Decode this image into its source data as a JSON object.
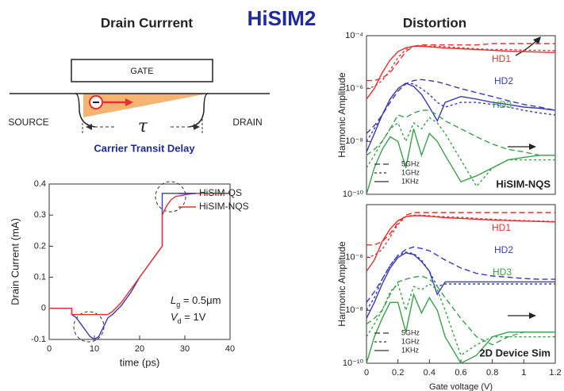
{
  "header": {
    "title": "HiSIM2",
    "left_title": "Drain Currrent",
    "right_title": "Distortion"
  },
  "diagram": {
    "gate": "GATE",
    "source": "SOURCE",
    "drain": "DRAIN",
    "tau": "τ",
    "caption": "Carrier Transit Delay"
  },
  "chart_data": [
    {
      "type": "line",
      "xlabel": "time (ps)",
      "ylabel": "Drain Current (mA)",
      "xlim": [
        0,
        40
      ],
      "xticks": [
        0,
        10,
        20,
        30,
        40
      ],
      "ylim": [
        -0.1,
        0.4
      ],
      "yticks": [
        -0.1,
        0,
        0.1,
        0.2,
        0.3,
        0.4
      ],
      "legend": "upper right",
      "annotations": [
        [
          "L",
          "g",
          " = 0.5μm"
        ],
        [
          "V",
          "d",
          " = 1V"
        ]
      ],
      "series": [
        {
          "name": "HiSIM-QS",
          "color": "#3b3bb5",
          "x": [
            0,
            5,
            5,
            6,
            7,
            8,
            9,
            10,
            11,
            12,
            13,
            14,
            16,
            18,
            20,
            22,
            24,
            25,
            25,
            27,
            30,
            35,
            40
          ],
          "values": [
            0,
            0,
            -0.02,
            -0.03,
            -0.05,
            -0.07,
            -0.09,
            -0.1,
            -0.09,
            -0.06,
            -0.03,
            -0.02,
            0.01,
            0.05,
            0.1,
            0.14,
            0.18,
            0.2,
            0.37,
            0.37,
            0.37,
            0.37,
            0.37
          ]
        },
        {
          "name": "HiSIM-NQS",
          "color": "#e8312f",
          "x": [
            0,
            5,
            5,
            10,
            13,
            14,
            16,
            18,
            20,
            22,
            24,
            25,
            25,
            26,
            27,
            28,
            30,
            32,
            35,
            40
          ],
          "values": [
            0,
            0,
            -0.02,
            -0.02,
            -0.02,
            -0.01,
            0.02,
            0.06,
            0.1,
            0.14,
            0.18,
            0.2,
            0.3,
            0.33,
            0.35,
            0.36,
            0.365,
            0.37,
            0.37,
            0.37
          ]
        }
      ]
    },
    {
      "type": "line",
      "log_y": true,
      "label": "HiSIM-NQS",
      "ylabel": "Harmonic Amplitude",
      "xlim": [
        0,
        1.2
      ],
      "ylim": [
        1e-10,
        0.0001
      ],
      "yticks": [
        {
          "value": 1e-10,
          "label": "10⁻¹⁰"
        },
        {
          "value": 1e-08,
          "label": "10⁻⁸"
        },
        {
          "value": 1e-06,
          "label": "10⁻⁶"
        },
        {
          "value": 0.0001,
          "label": "10⁻⁴"
        }
      ],
      "legend": [
        "5GHz",
        "1GHz",
        "1KHz"
      ],
      "x": [
        0,
        0.05,
        0.1,
        0.15,
        0.2,
        0.25,
        0.3,
        0.35,
        0.4,
        0.45,
        0.5,
        0.6,
        0.7,
        0.8,
        0.9,
        1.0,
        1.1,
        1.2
      ],
      "series": [
        {
          "name": "HD1",
          "color": "#e8312f",
          "lines": [
            [
              2e-06,
              2e-06,
              2.5e-06,
              4e-06,
              1e-05,
              2.5e-05,
              4e-05,
              4.5e-05,
              4.5e-05,
              4.5e-05,
              4.5e-05,
              4.5e-05,
              4.5e-05,
              5e-05,
              5e-05,
              5e-05,
              5e-05,
              5e-05
            ],
            [
              1e-06,
              1.2e-06,
              2e-06,
              5e-06,
              1.5e-05,
              3e-05,
              4e-05,
              4.2e-05,
              4e-05,
              4e-05,
              3.8e-05,
              3.5e-05,
              3.2e-05,
              3e-05,
              3e-05,
              2.8e-05,
              2.8e-05,
              2.7e-05
            ],
            [
              4e-07,
              1e-06,
              4e-06,
              1.2e-05,
              2.5e-05,
              3.5e-05,
              4e-05,
              4e-05,
              3.8e-05,
              3.6e-05,
              3.4e-05,
              3.2e-05,
              3e-05,
              2.8e-05,
              2.6e-05,
              2.5e-05,
              2.4e-05,
              2.3e-05
            ]
          ]
        },
        {
          "name": "HD2",
          "color": "#3b3bb5",
          "lines": [
            [
              2e-08,
              4e-08,
              1e-07,
              3e-07,
              8e-07,
              1.5e-06,
              2e-06,
              2.2e-06,
              2e-06,
              1.8e-06,
              1.5e-06,
              1e-06,
              7e-07,
              5e-07,
              3.5e-07,
              2.5e-07,
              2e-07,
              1.5e-07
            ],
            [
              1e-08,
              3e-08,
              1e-07,
              4e-07,
              1e-06,
              1.6e-06,
              1.5e-06,
              1e-06,
              6e-07,
              3e-07,
              2e-07,
              3e-07,
              3e-07,
              2.5e-07,
              2e-07,
              1.5e-07,
              1.2e-07,
              1e-07
            ],
            [
              4e-09,
              2e-08,
              1e-07,
              4e-07,
              1e-06,
              1.6e-06,
              1.2e-06,
              6e-07,
              2e-07,
              6e-08,
              3e-07,
              5e-07,
              4e-07,
              3e-07,
              2.5e-07,
              2e-07,
              1.8e-07,
              1.5e-07
            ]
          ]
        },
        {
          "name": "HD3",
          "color": "#3aa04a",
          "lines": [
            [
              3e-09,
              5e-09,
              1e-08,
              3e-08,
              1e-07,
              8e-08,
              1.2e-07,
              1.5e-07,
              1.5e-07,
              1e-07,
              6e-08,
              3e-08,
              1.5e-08,
              8e-09,
              5e-09,
              4e-09,
              3e-09,
              3e-09
            ],
            [
              1e-09,
              3e-09,
              1e-08,
              3e-08,
              5e-08,
              1e-08,
              5e-08,
              3e-08,
              8e-08,
              5e-08,
              2e-08,
              2e-09,
              2e-10,
              1e-09,
              2e-09,
              2e-09,
              2e-09,
              2e-09
            ],
            [
              1e-10,
              1e-09,
              5e-09,
              1.5e-08,
              1e-08,
              1e-09,
              3e-08,
              3e-09,
              2e-08,
              1e-08,
              3e-09,
              3e-10,
              5e-10,
              1e-09,
              2e-09,
              2.5e-09,
              3e-09,
              3e-09
            ]
          ]
        }
      ]
    },
    {
      "type": "line",
      "log_y": true,
      "label": "2D Device Sim",
      "ylabel": "Harmonic Amplitude",
      "xlabel": "Gate voltage (V)",
      "xlim": [
        0,
        1.2
      ],
      "xticks": [
        0,
        0.2,
        0.4,
        0.6,
        0.8,
        1,
        1.2
      ],
      "ylim": [
        1e-10,
        0.0001
      ],
      "yticks": [
        {
          "value": 1e-10,
          "label": "10⁻¹⁰"
        },
        {
          "value": 1e-08,
          "label": "10⁻⁸"
        },
        {
          "value": 1e-06,
          "label": "10⁻⁶"
        }
      ],
      "legend": [
        "5GHz",
        "1GHz",
        "1KHz"
      ],
      "x": [
        0,
        0.05,
        0.1,
        0.15,
        0.2,
        0.25,
        0.3,
        0.35,
        0.4,
        0.45,
        0.5,
        0.6,
        0.7,
        0.8,
        0.9,
        1.0,
        1.1,
        1.2
      ],
      "series": [
        {
          "name": "HD1",
          "color": "#e8312f",
          "lines": [
            [
              3e-06,
              3e-06,
              4e-06,
              8e-06,
              2e-05,
              4e-05,
              5e-05,
              5e-05,
              5e-05,
              5e-05,
              5e-05,
              5e-05,
              5e-05,
              5e-05,
              5e-05,
              5e-05,
              5e-05,
              5e-05
            ],
            [
              1e-06,
              1.2e-06,
              2e-06,
              6e-06,
              1.8e-05,
              3.5e-05,
              4e-05,
              4e-05,
              3.8e-05,
              3.6e-05,
              3.5e-05,
              3.3e-05,
              3e-05,
              2.8e-05,
              2.6e-05,
              2.5e-05,
              2.4e-05,
              2.3e-05
            ],
            [
              3e-07,
              8e-07,
              4e-06,
              1.2e-05,
              2.5e-05,
              3.5e-05,
              3.8e-05,
              3.8e-05,
              3.6e-05,
              3.4e-05,
              3.2e-05,
              3e-05,
              2.8e-05,
              2.6e-05,
              2.5e-05,
              2.4e-05,
              2.3e-05,
              2.2e-05
            ]
          ]
        },
        {
          "name": "HD2",
          "color": "#3b3bb5",
          "lines": [
            [
              2e-08,
              5e-08,
              1.5e-07,
              5e-07,
              1.2e-06,
              2e-06,
              2.5e-06,
              2.2e-06,
              1.8e-06,
              1.2e-06,
              8e-07,
              4e-07,
              2.5e-07,
              2e-07,
              1.8e-07,
              1.6e-07,
              1.5e-07,
              1.5e-07
            ],
            [
              1e-08,
              3e-08,
              1.5e-07,
              5e-07,
              1.2e-06,
              1.6e-06,
              1.4e-06,
              8e-07,
              3e-07,
              8e-08,
              1e-07,
              1e-07,
              1e-07,
              1e-07,
              1e-07,
              1e-07,
              1e-07,
              1e-07
            ],
            [
              5e-09,
              2e-08,
              1e-07,
              4e-07,
              1e-06,
              1.5e-06,
              1.3e-06,
              7e-07,
              3e-07,
              4e-08,
              1.2e-07,
              1.2e-07,
              1.2e-07,
              1.2e-07,
              1.2e-07,
              1.2e-07,
              1.2e-07,
              1.2e-07
            ]
          ]
        },
        {
          "name": "HD3",
          "color": "#3aa04a",
          "lines": [
            [
              3e-09,
              5e-09,
              1e-08,
              4e-08,
              1.2e-07,
              1.5e-07,
              1.8e-07,
              2e-07,
              1.5e-07,
              8e-08,
              3e-08,
              5e-09,
              1e-09,
              5e-10,
              1e-09,
              1.5e-09,
              1.5e-09,
              1.5e-09
            ],
            [
              1e-09,
              3e-09,
              1e-08,
              5e-08,
              1e-07,
              1e-08,
              8e-08,
              6e-08,
              1e-07,
              6e-08,
              1e-08,
              2e-10,
              5e-10,
              1e-09,
              1e-09,
              1e-09,
              1e-09,
              1e-09
            ],
            [
              1e-10,
              1e-09,
              5e-09,
              2e-08,
              2e-08,
              1.5e-09,
              4e-08,
              8e-09,
              3e-08,
              1e-08,
              1e-09,
              1e-10,
              2e-10,
              1e-09,
              1.5e-09,
              1.5e-09,
              1.5e-09,
              1.5e-09
            ]
          ]
        }
      ]
    }
  ]
}
